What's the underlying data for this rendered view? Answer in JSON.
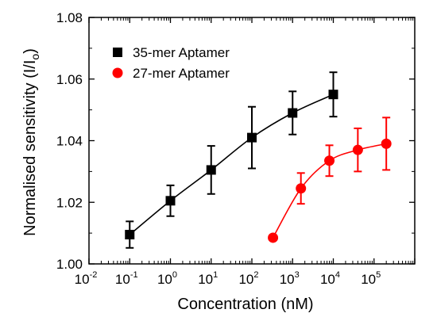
{
  "chart_data": {
    "type": "scatter",
    "xlabel": "Concentration (nM)",
    "ylabel_main": "Normalised sensitivity (I/I",
    "ylabel_sub": "o",
    "ylabel_close": ")",
    "xscale": "log",
    "xlim": [
      0.01,
      1000000
    ],
    "ylim": [
      1.0,
      1.08
    ],
    "x_ticks": [
      {
        "base": "10",
        "exp": "-2"
      },
      {
        "base": "10",
        "exp": "-1"
      },
      {
        "base": "10",
        "exp": "0"
      },
      {
        "base": "10",
        "exp": "1"
      },
      {
        "base": "10",
        "exp": "2"
      },
      {
        "base": "10",
        "exp": "3"
      },
      {
        "base": "10",
        "exp": "4"
      },
      {
        "base": "10",
        "exp": "5"
      }
    ],
    "x_tick_values": [
      0.01,
      0.1,
      1,
      10,
      100,
      1000,
      10000,
      100000
    ],
    "y_ticks": [
      "1.00",
      "1.02",
      "1.04",
      "1.06",
      "1.08"
    ],
    "y_tick_values": [
      1.0,
      1.02,
      1.04,
      1.06,
      1.08
    ],
    "legend_position": "top-left",
    "series": [
      {
        "name": "35-mer Aptamer",
        "color": "#000000",
        "marker": "square",
        "x": [
          0.1,
          1,
          10,
          100,
          1000,
          10000
        ],
        "y": [
          1.0095,
          1.0205,
          1.0305,
          1.041,
          1.049,
          1.055
        ],
        "err": [
          0.0043,
          0.005,
          0.0078,
          0.01,
          0.007,
          0.0072
        ]
      },
      {
        "name": "27-mer Aptamer",
        "color": "#ff0000",
        "marker": "circle",
        "x": [
          330,
          1600,
          8000,
          40000,
          200000
        ],
        "y": [
          1.0085,
          1.0245,
          1.0335,
          1.037,
          1.039
        ],
        "err": [
          0,
          0.005,
          0.005,
          0.007,
          0.0085
        ]
      }
    ]
  }
}
